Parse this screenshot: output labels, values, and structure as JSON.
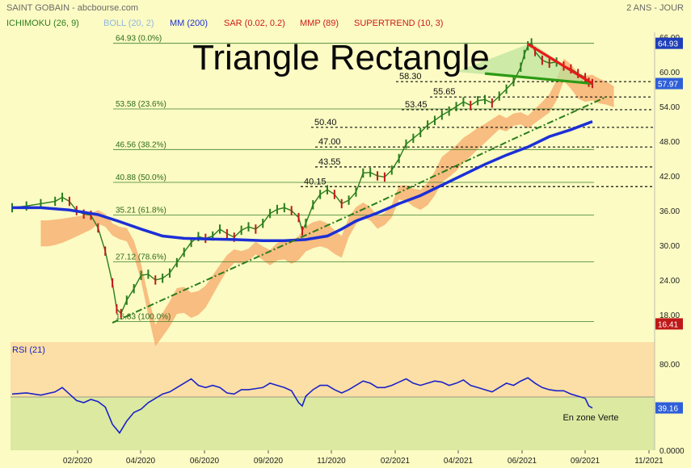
{
  "header": {
    "instrument": "SAINT GOBAIN - abcbourse.com",
    "period": "2 ANS - JOUR",
    "indicators": [
      {
        "label": "ICHIMOKU (26, 9)",
        "color": "#2e7d1e"
      },
      {
        "label": "BOLL (20, 2)",
        "color": "#8fb7e0"
      },
      {
        "label": "MM (200)",
        "color": "#1f2fd0"
      },
      {
        "label": "SAR (0.02, 0.2)",
        "color": "#d01818"
      },
      {
        "label": "MMP (89)",
        "color": "#d01818"
      },
      {
        "label": "SUPERTREND (10, 3)",
        "color": "#d01818"
      }
    ]
  },
  "chart_data": [
    {
      "type": "line",
      "title": "Triangle Rectangle",
      "y_ticks": [
        "66.00",
        "60.00",
        "54.00",
        "48.00",
        "42.00",
        "36.00",
        "30.00",
        "24.00",
        "18.00"
      ],
      "ylim": [
        16.41,
        66.0
      ],
      "x_ticks": [
        "02/2020",
        "04/2020",
        "06/2020",
        "09/2020",
        "11/2020",
        "02/2021",
        "04/2021",
        "06/2021",
        "09/2021",
        "11/2021"
      ],
      "price_badges": [
        {
          "value": "64.93",
          "y": 64.93,
          "color": "#1f3fb8"
        },
        {
          "value": "57.97",
          "y": 57.97,
          "color": "#2f5fd8"
        },
        {
          "value": "16.41",
          "y": 16.41,
          "color": "#c01818"
        }
      ],
      "fibonacci": [
        {
          "label": "64.93 (0.0%)",
          "y": 64.93
        },
        {
          "label": "53.58 (23.6%)",
          "y": 53.58
        },
        {
          "label": "46.56 (38.2%)",
          "y": 46.56
        },
        {
          "label": "40.88 (50.0%)",
          "y": 40.88
        },
        {
          "label": "35.21 (61.8%)",
          "y": 35.21
        },
        {
          "label": "27.12 (78.6%)",
          "y": 27.12
        },
        {
          "label": "16.83 (100.0%)",
          "y": 16.83
        }
      ],
      "levels": [
        {
          "label": "58.30",
          "y": 58.3
        },
        {
          "label": "55.65",
          "y": 55.65
        },
        {
          "label": "53.45",
          "y": 53.45
        },
        {
          "label": "50.40",
          "y": 50.4
        },
        {
          "label": "47.00",
          "y": 47.0
        },
        {
          "label": "43.55",
          "y": 43.55
        },
        {
          "label": "40.15",
          "y": 40.15
        }
      ],
      "price": [
        [
          0,
          36.5
        ],
        [
          2,
          36.8
        ],
        [
          4,
          37.2
        ],
        [
          6,
          37.6
        ],
        [
          7,
          38.3
        ],
        [
          8,
          37.6
        ],
        [
          9,
          36.0
        ],
        [
          10,
          35.4
        ],
        [
          11,
          35.2
        ],
        [
          12,
          33.0
        ],
        [
          13,
          29.0
        ],
        [
          14,
          23.5
        ],
        [
          14.6,
          19.0
        ],
        [
          15.2,
          18.2
        ],
        [
          16,
          20.5
        ],
        [
          17,
          22.5
        ],
        [
          18,
          24.8
        ],
        [
          19,
          25.0
        ],
        [
          20,
          24.0
        ],
        [
          21,
          24.3
        ],
        [
          22,
          25.2
        ],
        [
          23,
          27.0
        ],
        [
          24,
          28.8
        ],
        [
          25,
          30.5
        ],
        [
          26,
          31.5
        ],
        [
          27,
          31.2
        ],
        [
          28,
          31.6
        ],
        [
          29,
          32.8
        ],
        [
          30,
          32.0
        ],
        [
          31,
          31.4
        ],
        [
          32,
          32.6
        ],
        [
          33,
          33.2
        ],
        [
          34,
          32.8
        ],
        [
          35,
          33.8
        ],
        [
          36,
          35.5
        ],
        [
          37,
          36.2
        ],
        [
          38,
          36.5
        ],
        [
          39,
          36.0
        ],
        [
          40,
          34.8
        ],
        [
          40.5,
          32.5
        ],
        [
          41,
          33.8
        ],
        [
          42,
          37.0
        ],
        [
          43,
          38.8
        ],
        [
          44,
          39.6
        ],
        [
          45,
          38.8
        ],
        [
          46,
          37.2
        ],
        [
          47,
          37.8
        ],
        [
          48,
          39.2
        ],
        [
          49,
          42.5
        ],
        [
          50,
          42.6
        ],
        [
          51,
          42.0
        ],
        [
          52,
          41.8
        ],
        [
          53,
          43.0
        ],
        [
          54,
          45.0
        ],
        [
          55,
          47.5
        ],
        [
          56,
          48.5
        ],
        [
          57,
          49.5
        ],
        [
          58,
          50.8
        ],
        [
          59,
          51.6
        ],
        [
          60,
          52.5
        ],
        [
          61,
          53.2
        ],
        [
          62,
          54.0
        ],
        [
          63,
          54.8
        ],
        [
          64,
          54.2
        ],
        [
          65,
          55.0
        ],
        [
          66,
          55.2
        ],
        [
          67,
          54.6
        ],
        [
          68,
          55.8
        ],
        [
          69,
          57.0
        ],
        [
          70,
          58.3
        ],
        [
          71,
          60.8
        ],
        [
          71.5,
          63.0
        ],
        [
          72,
          64.5
        ],
        [
          72.5,
          65.0
        ],
        [
          73,
          63.5
        ],
        [
          74,
          62.0
        ],
        [
          75,
          61.5
        ],
        [
          76,
          61.7
        ],
        [
          77,
          61.0
        ],
        [
          78,
          60.5
        ],
        [
          79,
          59.7
        ],
        [
          80,
          59.0
        ],
        [
          80.5,
          58.2
        ],
        [
          81,
          57.97
        ]
      ],
      "series": [
        {
          "type": "line",
          "color": "#1c2fd6",
          "points": [
            [
              0,
              36.5
            ],
            [
              4,
              36.5
            ],
            [
              8,
              36.1
            ],
            [
              12,
              35.3
            ],
            [
              15,
              34.1
            ],
            [
              18,
              32.8
            ],
            [
              21,
              31.6
            ],
            [
              24,
              31.2
            ],
            [
              27,
              31.1
            ],
            [
              31,
              31.0
            ],
            [
              35,
              30.8
            ],
            [
              38,
              30.8
            ],
            [
              41,
              31.0
            ],
            [
              44,
              31.6
            ],
            [
              46,
              32.8
            ],
            [
              48,
              34.2
            ],
            [
              51,
              35.6
            ],
            [
              54,
              37.2
            ],
            [
              57,
              38.6
            ],
            [
              60,
              40.4
            ],
            [
              63,
              42.2
            ],
            [
              66,
              44.0
            ],
            [
              69,
              45.6
            ],
            [
              72,
              47.0
            ],
            [
              75,
              48.8
            ],
            [
              78,
              50.0
            ],
            [
              81,
              51.4
            ]
          ]
        },
        {
          "type": "line",
          "color": "#2a7d1c",
          "dashed": true,
          "points": [
            [
              14,
              16.6
            ],
            [
              20,
              20.0
            ],
            [
              30,
              25.6
            ],
            [
              40,
              31.2
            ],
            [
              50,
              36.8
            ],
            [
              60,
              42.6
            ],
            [
              70,
              48.4
            ],
            [
              80,
              54.0
            ],
            [
              83,
              55.7
            ]
          ]
        },
        {
          "type": "line",
          "color": "#2c9a14",
          "points": [
            [
              66,
              59.7
            ],
            [
              81,
              57.97
            ]
          ]
        },
        {
          "type": "line",
          "color": "#e81a1a",
          "points": [
            [
              72,
              64.8
            ],
            [
              81,
              57.97
            ]
          ]
        }
      ]
    },
    {
      "type": "line",
      "title": "RSI (21)",
      "y_ticks": [
        "80.00",
        "0.0000"
      ],
      "ylim": [
        0,
        100
      ],
      "value_badge": "39.16",
      "annotation": "En zone Verte",
      "series": [
        {
          "name": "RSI (21)",
          "color": "#1a22c8",
          "points": [
            [
              0,
              52
            ],
            [
              2,
              53
            ],
            [
              4,
              51
            ],
            [
              6,
              54
            ],
            [
              7,
              58
            ],
            [
              8,
              52
            ],
            [
              9,
              46
            ],
            [
              10,
              44
            ],
            [
              11,
              47
            ],
            [
              12,
              45
            ],
            [
              13,
              40
            ],
            [
              14,
              24
            ],
            [
              15,
              16
            ],
            [
              16,
              27
            ],
            [
              17,
              35
            ],
            [
              18,
              38
            ],
            [
              19,
              44
            ],
            [
              20,
              48
            ],
            [
              21,
              52
            ],
            [
              22,
              54
            ],
            [
              23,
              58
            ],
            [
              24,
              62
            ],
            [
              25,
              66
            ],
            [
              26,
              60
            ],
            [
              27,
              58
            ],
            [
              28,
              60
            ],
            [
              29,
              58
            ],
            [
              30,
              53
            ],
            [
              31,
              52
            ],
            [
              32,
              56
            ],
            [
              33,
              56
            ],
            [
              34,
              57
            ],
            [
              35,
              58
            ],
            [
              36,
              62
            ],
            [
              37,
              60
            ],
            [
              38,
              58
            ],
            [
              39,
              55
            ],
            [
              40,
              44
            ],
            [
              40.5,
              41
            ],
            [
              41,
              50
            ],
            [
              42,
              56
            ],
            [
              43,
              60
            ],
            [
              44,
              60
            ],
            [
              45,
              56
            ],
            [
              46,
              53
            ],
            [
              47,
              56
            ],
            [
              48,
              60
            ],
            [
              49,
              64
            ],
            [
              50,
              62
            ],
            [
              51,
              58
            ],
            [
              52,
              58
            ],
            [
              53,
              60
            ],
            [
              54,
              63
            ],
            [
              55,
              66
            ],
            [
              56,
              62
            ],
            [
              57,
              60
            ],
            [
              58,
              62
            ],
            [
              59,
              64
            ],
            [
              60,
              63
            ],
            [
              61,
              60
            ],
            [
              62,
              62
            ],
            [
              63,
              65
            ],
            [
              64,
              60
            ],
            [
              65,
              58
            ],
            [
              66,
              56
            ],
            [
              67,
              54
            ],
            [
              68,
              58
            ],
            [
              69,
              62
            ],
            [
              70,
              60
            ],
            [
              71,
              64
            ],
            [
              72,
              67
            ],
            [
              73,
              62
            ],
            [
              74,
              58
            ],
            [
              75,
              56
            ],
            [
              76,
              55
            ],
            [
              77,
              55
            ],
            [
              78,
              52
            ],
            [
              79,
              50
            ],
            [
              80,
              48
            ],
            [
              80.5,
              41
            ],
            [
              81,
              39
            ]
          ]
        }
      ]
    }
  ]
}
